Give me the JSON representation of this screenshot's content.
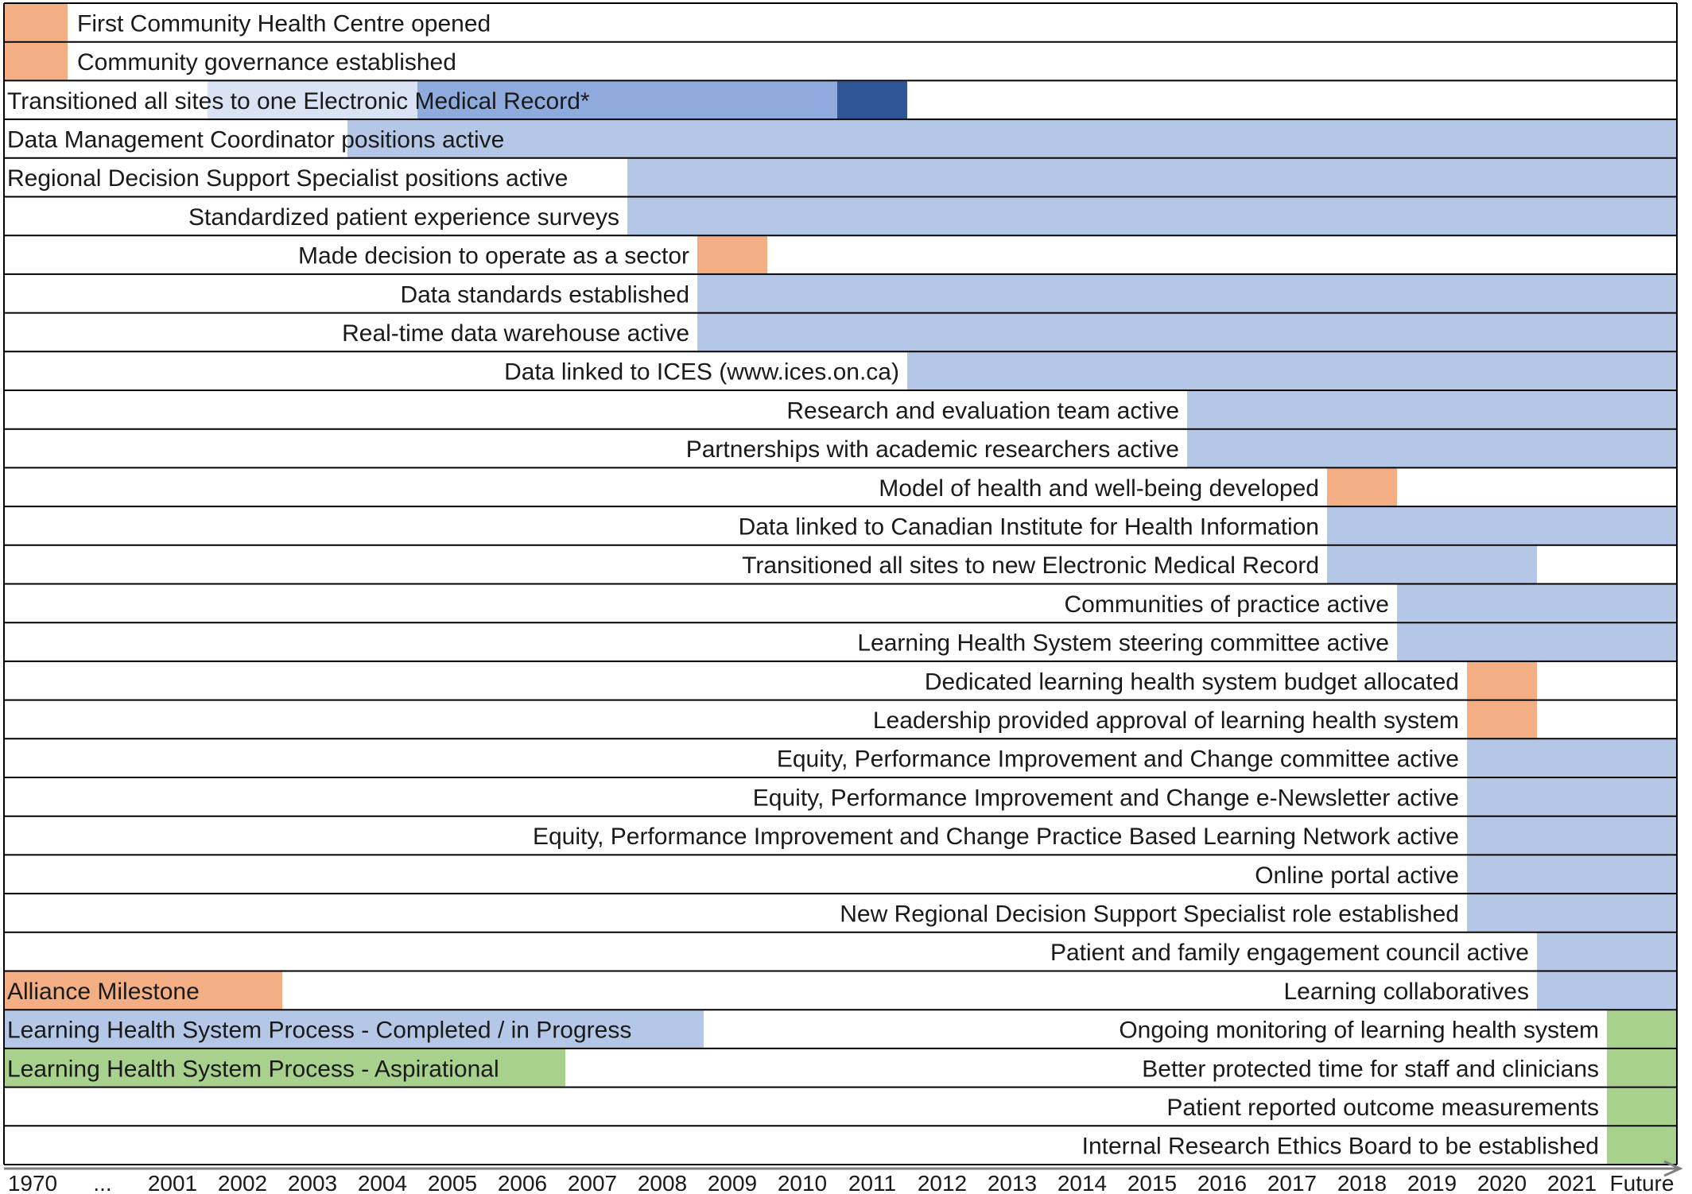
{
  "chart_data": {
    "type": "bar",
    "subtype": "timeline",
    "title": "",
    "xlabel": "",
    "ylabel": "",
    "x_ticks": [
      "1970",
      "...",
      "2001",
      "2002",
      "2003",
      "2004",
      "2005",
      "2006",
      "2007",
      "2008",
      "2009",
      "2010",
      "2011",
      "2012",
      "2013",
      "2014",
      "2015",
      "2016",
      "2017",
      "2018",
      "2019",
      "2020",
      "2021",
      "Future"
    ],
    "colors": {
      "alliance_milestone": "#f4ae84",
      "completed": "#b4c7e7",
      "aspirational": "#a9d18e",
      "emr_light": "#dae3f3",
      "emr_mid": "#8faadc",
      "emr_dark": "#2f5597"
    },
    "legend": [
      {
        "label": "Alliance Milestone",
        "color": "#f4ae84"
      },
      {
        "label": "Learning Health System Process - Completed / in Progress",
        "color": "#b4c7e7"
      },
      {
        "label": "Learning Health System Process - Aspirational",
        "color": "#a9d18e"
      }
    ],
    "rows": [
      {
        "label": "First Community Health Centre opened",
        "label_align": "after",
        "segments": [
          {
            "start": "1970",
            "end": "1970",
            "type": "alliance_milestone"
          }
        ]
      },
      {
        "label": "Community governance established",
        "label_align": "after",
        "segments": [
          {
            "start": "1970",
            "end": "1970",
            "type": "alliance_milestone"
          }
        ]
      },
      {
        "label": "Transitioned all sites to one Electronic Medical Record*",
        "label_align": "left",
        "segments": [
          {
            "start": "2002",
            "end": "2004",
            "type": "emr_light"
          },
          {
            "start": "2005",
            "end": "2007",
            "type": "emr_mid"
          },
          {
            "start": "2008",
            "end": "2010",
            "type": "emr_mid"
          },
          {
            "start": "2011",
            "end": "2011",
            "type": "emr_dark"
          }
        ]
      },
      {
        "label": "Data Management Coordinator positions active",
        "label_align": "left",
        "segments": [
          {
            "start": "2004",
            "end": "Future",
            "type": "completed"
          }
        ]
      },
      {
        "label": "Regional Decision Support Specialist positions active",
        "label_align": "left",
        "segments": [
          {
            "start": "2008",
            "end": "Future",
            "type": "completed"
          }
        ]
      },
      {
        "label": "Standardized patient experience surveys",
        "label_align": "before",
        "segments": [
          {
            "start": "2008",
            "end": "Future",
            "type": "completed"
          }
        ]
      },
      {
        "label": "Made decision to operate as a sector",
        "label_align": "before",
        "segments": [
          {
            "start": "2009",
            "end": "2009",
            "type": "alliance_milestone"
          }
        ]
      },
      {
        "label": "Data standards established",
        "label_align": "before",
        "segments": [
          {
            "start": "2009",
            "end": "Future",
            "type": "completed"
          }
        ]
      },
      {
        "label": "Real-time data warehouse active",
        "label_align": "before",
        "segments": [
          {
            "start": "2009",
            "end": "Future",
            "type": "completed"
          }
        ]
      },
      {
        "label": "Data linked to ICES (www.ices.on.ca)",
        "label_align": "before",
        "segments": [
          {
            "start": "2012",
            "end": "Future",
            "type": "completed"
          }
        ]
      },
      {
        "label": "Research and evaluation team active",
        "label_align": "before",
        "segments": [
          {
            "start": "2016",
            "end": "Future",
            "type": "completed"
          }
        ]
      },
      {
        "label": "Partnerships with academic researchers active",
        "label_align": "before",
        "segments": [
          {
            "start": "2016",
            "end": "Future",
            "type": "completed"
          }
        ]
      },
      {
        "label": "Model of health and well-being developed",
        "label_align": "before",
        "segments": [
          {
            "start": "2018",
            "end": "2018",
            "type": "alliance_milestone"
          }
        ]
      },
      {
        "label": "Data linked to Canadian Institute for Health Information",
        "label_align": "before",
        "segments": [
          {
            "start": "2018",
            "end": "Future",
            "type": "completed"
          }
        ]
      },
      {
        "label": "Transitioned all sites to new Electronic Medical Record",
        "label_align": "before",
        "segments": [
          {
            "start": "2018",
            "end": "2020",
            "type": "completed"
          }
        ]
      },
      {
        "label": "Communities of practice active",
        "label_align": "before",
        "segments": [
          {
            "start": "2019",
            "end": "Future",
            "type": "completed"
          }
        ]
      },
      {
        "label": "Learning Health System steering committee active",
        "label_align": "before",
        "segments": [
          {
            "start": "2019",
            "end": "Future",
            "type": "completed"
          }
        ]
      },
      {
        "label": "Dedicated learning health system budget allocated",
        "label_align": "before",
        "segments": [
          {
            "start": "2020",
            "end": "2020",
            "type": "alliance_milestone"
          }
        ]
      },
      {
        "label": "Leadership provided approval of learning health system",
        "label_align": "before",
        "segments": [
          {
            "start": "2020",
            "end": "2020",
            "type": "alliance_milestone"
          }
        ]
      },
      {
        "label": "Equity, Performance Improvement and Change committee active",
        "label_align": "before",
        "segments": [
          {
            "start": "2020",
            "end": "Future",
            "type": "completed"
          }
        ]
      },
      {
        "label": "Equity, Performance Improvement and Change e-Newsletter active",
        "label_align": "before",
        "segments": [
          {
            "start": "2020",
            "end": "Future",
            "type": "completed"
          }
        ]
      },
      {
        "label": "Equity, Performance Improvement and Change Practice Based Learning Network active",
        "label_align": "before",
        "segments": [
          {
            "start": "2020",
            "end": "Future",
            "type": "completed"
          }
        ]
      },
      {
        "label": "Online portal active",
        "label_align": "before",
        "segments": [
          {
            "start": "2020",
            "end": "Future",
            "type": "completed"
          }
        ]
      },
      {
        "label": "New Regional Decision Support Specialist role established",
        "label_align": "before",
        "segments": [
          {
            "start": "2020",
            "end": "Future",
            "type": "completed"
          }
        ]
      },
      {
        "label": "Patient and family engagement council active",
        "label_align": "before",
        "segments": [
          {
            "start": "2021",
            "end": "Future",
            "type": "completed"
          }
        ]
      },
      {
        "label": "Learning collaboratives",
        "label_align": "before",
        "segments": [
          {
            "start": "2021",
            "end": "Future",
            "type": "completed"
          }
        ]
      },
      {
        "label": "Ongoing monitoring of learning health system",
        "label_align": "before",
        "segments": [
          {
            "start": "Future",
            "end": "Future",
            "type": "aspirational"
          }
        ]
      },
      {
        "label": "Better protected time for staff and clinicians",
        "label_align": "before",
        "segments": [
          {
            "start": "Future",
            "end": "Future",
            "type": "aspirational"
          }
        ]
      },
      {
        "label": "Patient reported outcome measurements",
        "label_align": "before",
        "segments": [
          {
            "start": "Future",
            "end": "Future",
            "type": "aspirational"
          }
        ]
      },
      {
        "label": "Internal Research Ethics Board to be established",
        "label_align": "before",
        "segments": [
          {
            "start": "Future",
            "end": "Future",
            "type": "aspirational"
          }
        ]
      }
    ]
  }
}
